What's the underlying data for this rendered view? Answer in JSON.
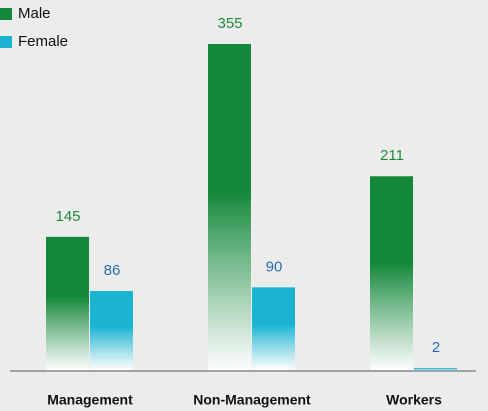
{
  "chart_data": {
    "type": "bar",
    "categories": [
      "Management",
      "Non-Management",
      "Workers"
    ],
    "series": [
      {
        "name": "Male",
        "color": "#14883a",
        "label_color": "#1f8a3c",
        "values": [
          145,
          355,
          211
        ]
      },
      {
        "name": "Female",
        "color": "#1ab4d2",
        "label_color": "#2a6cb0",
        "values": [
          86,
          90,
          2
        ]
      }
    ],
    "legend": "top-left"
  }
}
